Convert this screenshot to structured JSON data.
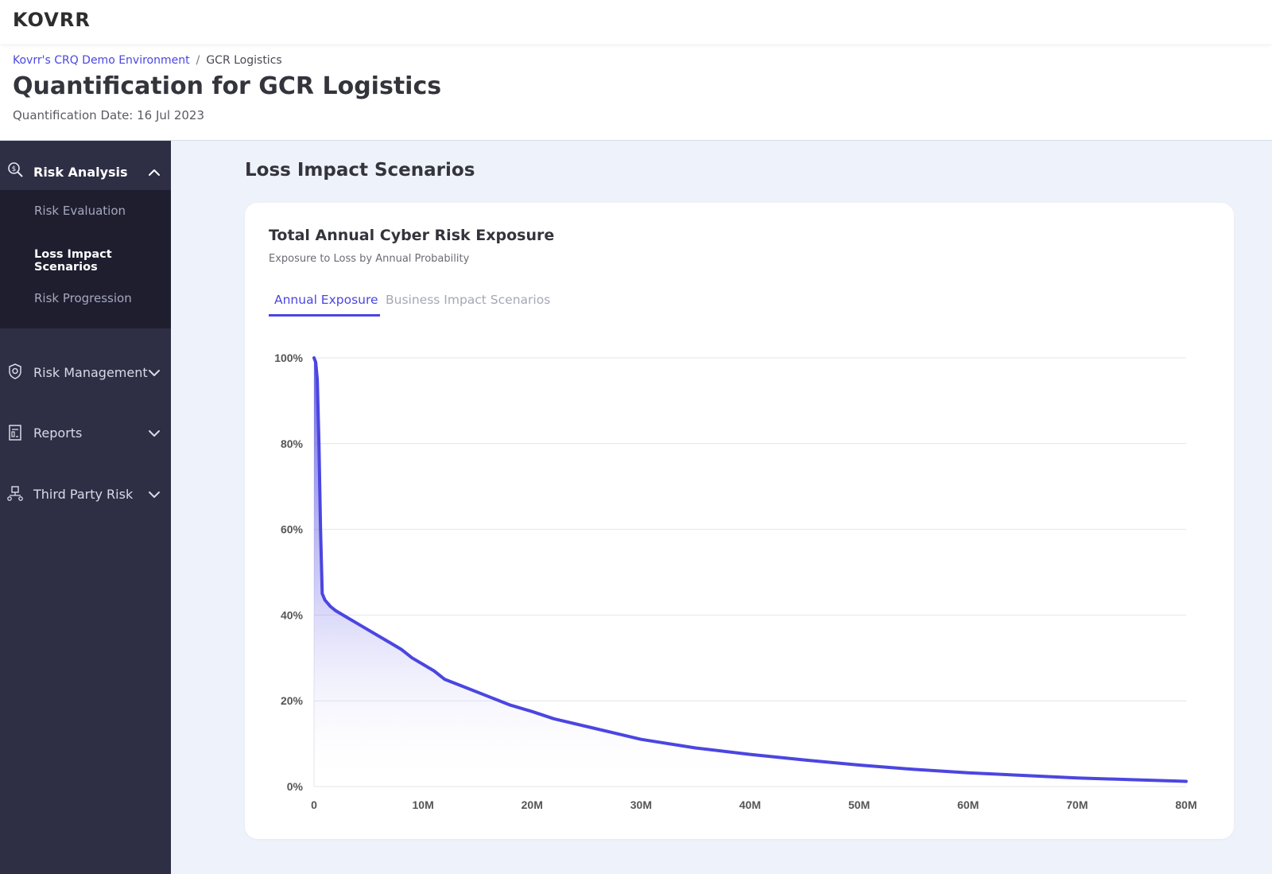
{
  "topbar": {
    "logo": "KOVRR"
  },
  "header": {
    "breadcrumb": {
      "root": "Kovrr's CRQ Demo Environment",
      "separator": "/",
      "current": "GCR Logistics"
    },
    "title": "Quantification for GCR Logistics",
    "subtitle": "Quantification Date: 16 Jul 2023"
  },
  "sidebar": {
    "risk_analysis": {
      "label": "Risk Analysis",
      "icon": "magnifier-dollar-icon",
      "items": [
        "Risk Evaluation",
        "Loss Impact Scenarios",
        "Risk Progression"
      ],
      "active_item": "Loss Impact Scenarios"
    },
    "sections": [
      {
        "label": "Risk Management",
        "icon": "shield-gear-icon"
      },
      {
        "label": "Reports",
        "icon": "report-icon"
      },
      {
        "label": "Third Party Risk",
        "icon": "network-icon"
      }
    ]
  },
  "main": {
    "title": "Loss Impact Scenarios",
    "card": {
      "title": "Total Annual Cyber Risk Exposure",
      "subtitle": "Exposure to Loss by Annual Probability",
      "tabs": [
        {
          "label": "Annual Exposure",
          "active": true
        },
        {
          "label": "Business Impact Scenarios",
          "active": false
        }
      ]
    }
  },
  "colors": {
    "accent": "#4b46e0",
    "sidebar": "#2e2f45",
    "sidebar_dark": "#1e1e2f",
    "background": "#eef2fa"
  },
  "chart_data": {
    "type": "area",
    "title": "",
    "xlabel": "",
    "ylabel": "",
    "x_ticks": [
      "0",
      "10M",
      "20M",
      "30M",
      "40M",
      "50M",
      "60M",
      "70M",
      "80M"
    ],
    "y_ticks": [
      "0%",
      "20%",
      "40%",
      "60%",
      "80%",
      "100%"
    ],
    "xlim": [
      0,
      80000000
    ],
    "ylim": [
      0,
      100
    ],
    "grid": "horizontal",
    "series": [
      {
        "x": [
          0,
          150000,
          300000,
          450000,
          600000,
          750000,
          1000000,
          1500000,
          2000000,
          3000000,
          4000000,
          5000000,
          6000000,
          7000000,
          8000000,
          9000000,
          10000000,
          11000000,
          12000000,
          14000000,
          16000000,
          18000000,
          20000000,
          22000000,
          25000000,
          30000000,
          35000000,
          40000000,
          45000000,
          50000000,
          55000000,
          60000000,
          65000000,
          70000000,
          75000000,
          80000000
        ],
        "y": [
          100,
          99,
          95,
          80,
          60,
          45,
          43.5,
          42,
          41,
          39.5,
          38,
          36.5,
          35,
          33.5,
          32,
          30,
          28.5,
          27,
          25,
          23,
          21,
          19,
          17.5,
          15.8,
          14,
          11,
          9,
          7.5,
          6.2,
          5,
          4,
          3.2,
          2.6,
          2,
          1.6,
          1.2
        ]
      }
    ]
  }
}
